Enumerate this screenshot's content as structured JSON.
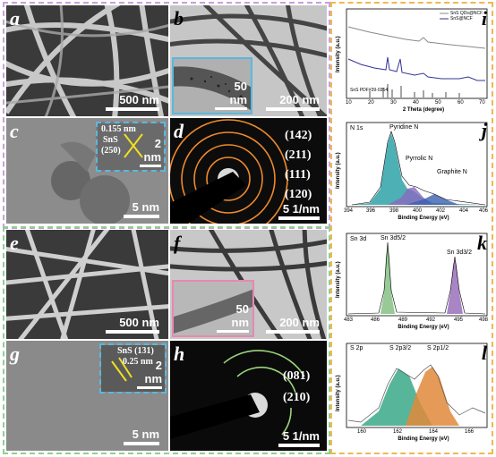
{
  "colors": {
    "purple_frame": "#c9a0dc",
    "green_frame": "#8fd08f",
    "orange_frame": "#f0b850",
    "inset_blue": "#5ab8e0",
    "inset_pink": "#e888b0",
    "ring": "#f08a2c",
    "ring_h": "#9ad47a"
  },
  "panels": {
    "a": {
      "label": "a",
      "scale": "500 nm"
    },
    "b": {
      "label": "b",
      "scale": "200 nm",
      "inset_scale": "50 nm"
    },
    "c": {
      "label": "c",
      "scale": "5 nm",
      "inset_scale": "2 nm",
      "spacing": "0.155 nm",
      "phase": "SnS",
      "plane": "(250)"
    },
    "d": {
      "label": "d",
      "scale": "5 1/nm",
      "rings": [
        "(142)",
        "(211)",
        "(111)",
        "(120)"
      ]
    },
    "e": {
      "label": "e",
      "scale": "500 nm"
    },
    "f": {
      "label": "f",
      "scale": "200 nm",
      "inset_scale": "50 nm"
    },
    "g": {
      "label": "g",
      "scale": "5 nm",
      "inset_scale": "2 nm",
      "phase": "SnS (131)",
      "spacing": "0.25 nm"
    },
    "h": {
      "label": "h",
      "scale": "5 1/nm",
      "rings": [
        "(081)",
        "(210)"
      ]
    }
  },
  "plot_i": {
    "label": "i",
    "legend": [
      "SnS QDs@NCF",
      "SnS@NCF"
    ],
    "ref": "SnS PDF#39-0354",
    "xlabel": "2 Theta (degree)",
    "ylabel": "Intensity (a.u.)",
    "xticks": [
      "10",
      "20",
      "30",
      "40",
      "50",
      "60",
      "70"
    ]
  },
  "plot_j": {
    "label": "j",
    "title": "N 1s",
    "peaks": [
      "Pyridine N",
      "Pyrrolic N",
      "Graphite N"
    ],
    "xlabel": "Binding Energy (eV)",
    "ylabel": "Intensity (a.u.)",
    "xticks": [
      "394",
      "396",
      "398",
      "400",
      "402",
      "404",
      "406"
    ]
  },
  "plot_k": {
    "label": "k",
    "title": "Sn 3d",
    "peaks": [
      "Sn 3d5/2",
      "Sn 3d3/2"
    ],
    "xlabel": "Binding Energy (eV)",
    "ylabel": "Intensity (a.u.)",
    "xticks": [
      "483",
      "486",
      "489",
      "492",
      "495",
      "498"
    ]
  },
  "plot_l": {
    "label": "l",
    "title": "S 2p",
    "peaks": [
      "S 2p3/2",
      "S 2p1/2"
    ],
    "xlabel": "Binding Energy (eV)",
    "ylabel": "Intensity (a.u.)",
    "xticks": [
      "160",
      "162",
      "164",
      "166"
    ]
  }
}
